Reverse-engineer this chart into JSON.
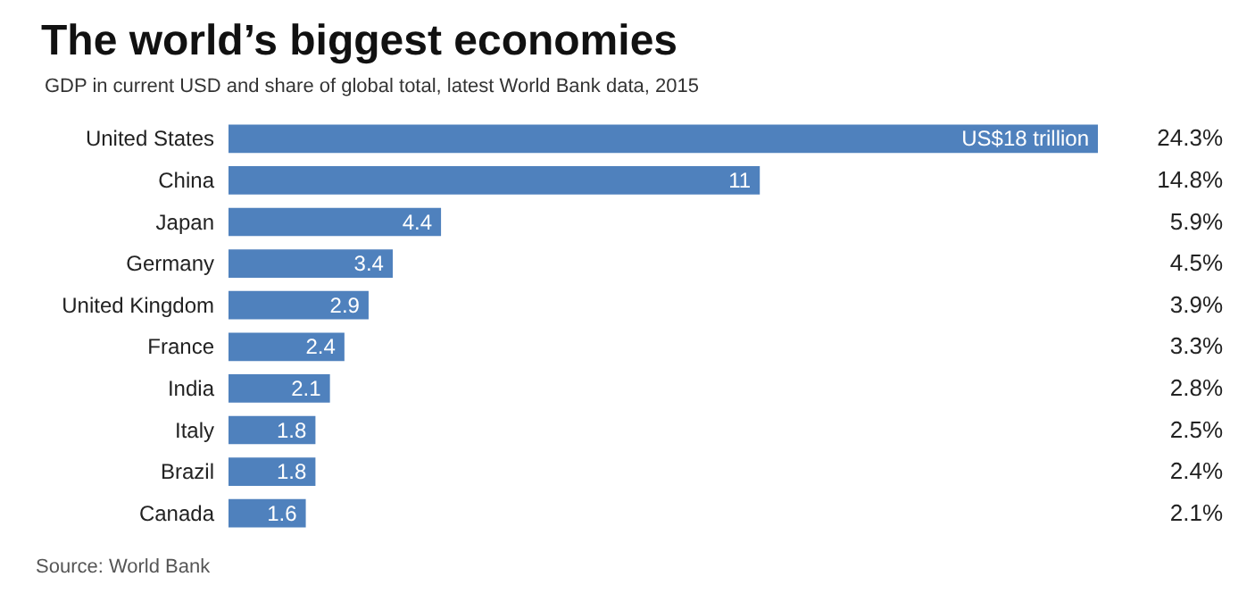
{
  "chart_data": {
    "type": "bar",
    "orientation": "horizontal",
    "title": "The world’s biggest economies",
    "subtitle": "GDP in current USD and share of global total, latest World Bank data, 2015",
    "categories": [
      "United States",
      "China",
      "Japan",
      "Germany",
      "United Kingdom",
      "France",
      "India",
      "Italy",
      "Brazil",
      "Canada"
    ],
    "values": [
      18,
      11,
      4.4,
      3.4,
      2.9,
      2.4,
      2.1,
      1.8,
      1.8,
      1.6
    ],
    "value_labels": [
      "US$18 trillion",
      "11",
      "4.4",
      "3.4",
      "2.9",
      "2.4",
      "2.1",
      "1.8",
      "1.8",
      "1.6"
    ],
    "color": "#4f81bd",
    "annotations": [
      "24.3%",
      "14.8%",
      "5.9%",
      "4.5%",
      "3.9%",
      "3.3%",
      "2.8%",
      "2.5%",
      "2.4%",
      "2.1%",
      "Source: World Bank"
    ]
  }
}
